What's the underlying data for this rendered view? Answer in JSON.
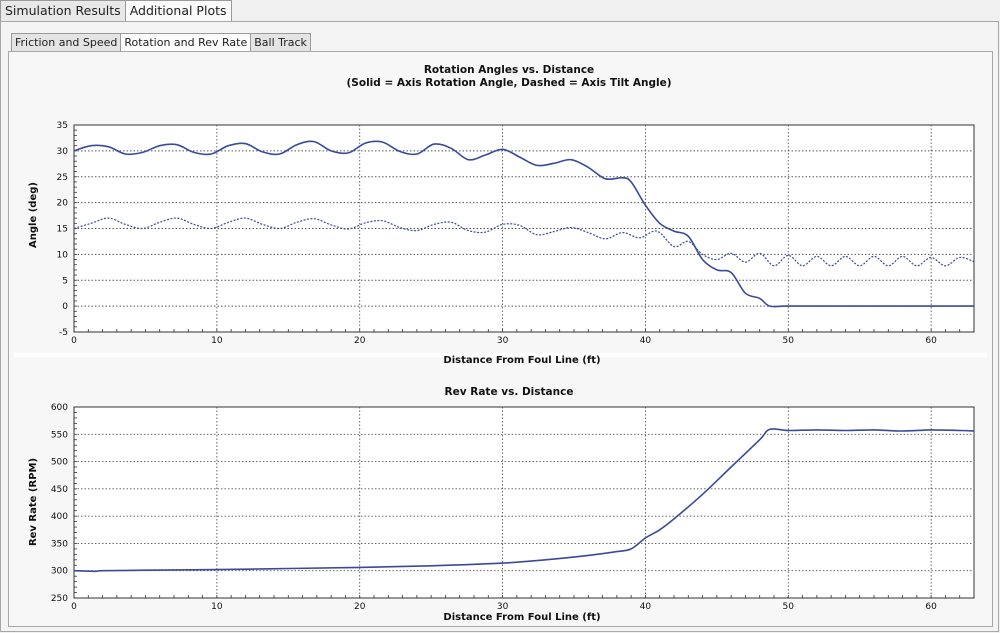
{
  "top_tabs": [
    {
      "label": "Simulation Results",
      "active": false
    },
    {
      "label": "Additional Plots",
      "active": true
    }
  ],
  "sub_tabs": [
    {
      "label": "Friction and Speed",
      "active": false
    },
    {
      "label": "Rotation and Rev Rate",
      "active": true
    },
    {
      "label": "Ball Track",
      "active": false
    }
  ],
  "chart_data": [
    {
      "type": "line",
      "title": "Rotation Angles vs. Distance",
      "subtitle": "(Solid = Axis Rotation Angle, Dashed = Axis Tilt Angle)",
      "xlabel": "Distance From Foul Line (ft)",
      "ylabel": "Angle (deg)",
      "xlim": [
        0,
        63
      ],
      "ylim": [
        -5,
        35
      ],
      "xticks": [
        0,
        10,
        20,
        30,
        40,
        50,
        60
      ],
      "yticks": [
        -5,
        0,
        5,
        10,
        15,
        20,
        25,
        30,
        35
      ],
      "grid": true,
      "series": [
        {
          "style": "solid",
          "color": "#3a4a9a",
          "x": [
            0,
            1.2,
            2.4,
            3.6,
            4.8,
            6.0,
            7.2,
            8.4,
            9.6,
            10.8,
            12.0,
            13.2,
            14.4,
            15.6,
            16.8,
            18.0,
            19.2,
            20.4,
            21.6,
            22.8,
            24.0,
            25.2,
            26.4,
            27.6,
            28.8,
            30.0,
            31.2,
            32.4,
            33.6,
            34.8,
            36.0,
            37.2,
            38.4,
            39.0,
            40.0,
            41.0,
            42.0,
            43.0,
            44.0,
            45.0,
            46.0,
            47.0,
            48.0,
            48.7,
            50,
            55,
            60,
            63
          ],
          "y": [
            30.0,
            31.0,
            30.8,
            29.4,
            29.7,
            31.0,
            31.2,
            29.7,
            29.4,
            31.0,
            31.4,
            29.8,
            29.4,
            31.2,
            31.8,
            30.0,
            29.6,
            31.5,
            31.7,
            29.9,
            29.4,
            31.3,
            30.5,
            28.3,
            29.2,
            30.3,
            28.8,
            27.2,
            27.6,
            28.3,
            26.8,
            24.6,
            24.8,
            24.0,
            19.5,
            16.0,
            14.5,
            13.5,
            9.0,
            7.0,
            6.5,
            2.5,
            1.5,
            0,
            0,
            0,
            0,
            0
          ]
        },
        {
          "style": "dashed",
          "color": "#3a4a9a",
          "x": [
            0,
            1.2,
            2.4,
            3.6,
            4.8,
            6.0,
            7.2,
            8.4,
            9.6,
            10.8,
            12.0,
            13.2,
            14.4,
            15.6,
            16.8,
            18.0,
            19.2,
            20.4,
            21.6,
            22.8,
            24.0,
            25.2,
            26.4,
            27.6,
            28.8,
            30.0,
            31.2,
            32.4,
            33.6,
            34.8,
            36.0,
            37.2,
            38.4,
            39.6,
            40.8,
            42.0,
            43.0,
            44.0,
            45.0,
            46.0,
            47.0,
            48.0,
            49.0,
            50.0,
            51.0,
            52.0,
            53.0,
            54.0,
            55.0,
            56.0,
            57.0,
            58.0,
            59.0,
            60.0,
            61.0,
            62.0,
            63.0
          ],
          "y": [
            15.0,
            16.0,
            17.0,
            15.8,
            15.0,
            16.2,
            17.0,
            15.8,
            15.0,
            16.2,
            17.0,
            15.8,
            15.0,
            16.2,
            16.9,
            15.7,
            14.9,
            16.1,
            16.5,
            15.2,
            14.6,
            15.8,
            16.2,
            14.6,
            14.3,
            15.8,
            15.6,
            13.8,
            14.4,
            15.2,
            14.2,
            13.0,
            14.2,
            13.2,
            14.5,
            11.5,
            12.5,
            10.0,
            9.0,
            10.2,
            8.5,
            10.2,
            7.8,
            9.8,
            7.8,
            9.6,
            7.8,
            9.6,
            7.8,
            9.6,
            7.8,
            9.6,
            7.8,
            9.4,
            7.8,
            9.4,
            8.6
          ]
        }
      ]
    },
    {
      "type": "line",
      "title": "Rev Rate vs. Distance",
      "xlabel": "Distance From Foul Line (ft)",
      "ylabel": "Rev Rate (RPM)",
      "xlim": [
        0,
        63
      ],
      "ylim": [
        250,
        600
      ],
      "xticks": [
        0,
        10,
        20,
        30,
        40,
        50,
        60
      ],
      "yticks": [
        250,
        300,
        350,
        400,
        450,
        500,
        550,
        600
      ],
      "grid": true,
      "series": [
        {
          "style": "solid",
          "color": "#3a4a9a",
          "x": [
            0,
            1.5,
            2.0,
            5,
            10,
            15,
            20,
            25,
            30,
            33,
            36,
            38,
            39,
            40,
            41,
            42,
            44,
            46,
            48,
            48.7,
            50,
            52,
            54,
            56,
            58,
            60,
            62,
            63
          ],
          "y": [
            300,
            299,
            300,
            301,
            302,
            304,
            306,
            309,
            314,
            320,
            328,
            335,
            340,
            360,
            375,
            395,
            440,
            490,
            540,
            559,
            557,
            558,
            557,
            558,
            556,
            558,
            557,
            556
          ]
        }
      ]
    }
  ]
}
